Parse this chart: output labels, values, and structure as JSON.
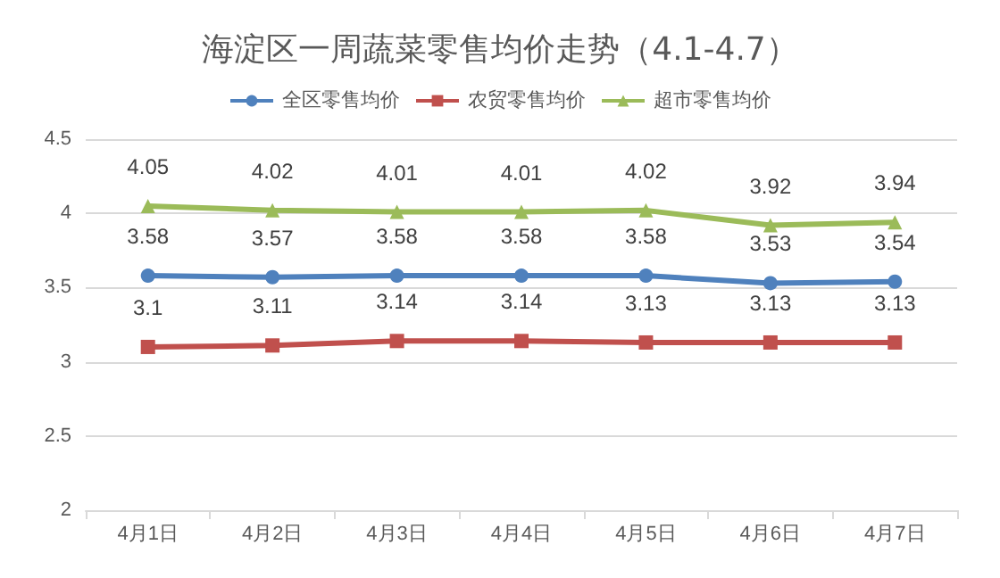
{
  "chart_data": {
    "type": "line",
    "title": "海淀区一周蔬菜零售均价走势（4.1-4.7）",
    "categories": [
      "4月1日",
      "4月2日",
      "4月3日",
      "4月4日",
      "4月5日",
      "4月6日",
      "4月7日"
    ],
    "series": [
      {
        "name": "全区零售均价",
        "color": "#4f81bd",
        "marker": "circle",
        "values": [
          3.58,
          3.57,
          3.58,
          3.58,
          3.58,
          3.53,
          3.54
        ]
      },
      {
        "name": "农贸零售均价",
        "color": "#c0504d",
        "marker": "square",
        "values": [
          3.1,
          3.11,
          3.14,
          3.14,
          3.13,
          3.13,
          3.13
        ]
      },
      {
        "name": "超市零售均价",
        "color": "#9bbb59",
        "marker": "triangle",
        "values": [
          4.05,
          4.02,
          4.01,
          4.01,
          4.02,
          3.92,
          3.94
        ]
      }
    ],
    "ylim": [
      2,
      4.5
    ],
    "yticks": [
      2,
      2.5,
      3,
      3.5,
      4,
      4.5
    ],
    "grid": "y",
    "legend": "top",
    "data_labels": true
  }
}
